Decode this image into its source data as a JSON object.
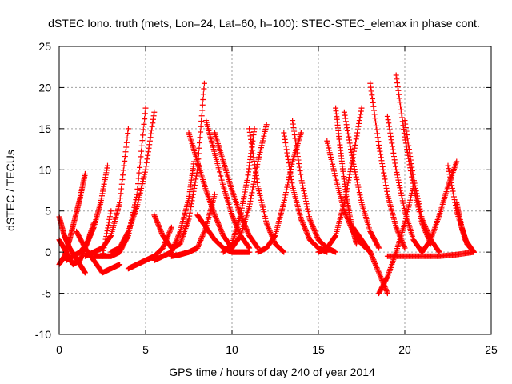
{
  "chart_data": {
    "type": "scatter",
    "title": "dSTEC Iono. truth (mets, Lon=24, Lat=60, h=100): STEC-STEC_elemax in phase cont.",
    "xlabel": "GPS time / hours of day 240 of year 2014",
    "ylabel": "dSTEC  / TECUs",
    "xlim": [
      0,
      25
    ],
    "ylim": [
      -10,
      25
    ],
    "xticks": [
      0,
      5,
      10,
      15,
      20,
      25
    ],
    "yticks": [
      -10,
      -5,
      0,
      5,
      10,
      15,
      20,
      25
    ],
    "xtick_labels": [
      "0",
      "5",
      "10",
      "15",
      "20",
      "25"
    ],
    "ytick_labels": [
      "-10",
      "-5",
      "0",
      "5",
      "10",
      "15",
      "20",
      "25"
    ],
    "grid": true,
    "marker": "+",
    "color": "#ff0000",
    "series": [
      {
        "x": [
          0.0,
          0.3,
          0.6,
          0.9,
          1.2,
          1.5
        ],
        "y": [
          4.3,
          2.0,
          0.5,
          -0.5,
          -1.5,
          -2.5
        ]
      },
      {
        "x": [
          0.0,
          0.3,
          0.6,
          0.9,
          1.2,
          1.5
        ],
        "y": [
          -1.5,
          -0.5,
          1.5,
          4.0,
          6.5,
          9.5
        ]
      },
      {
        "x": [
          0.0,
          0.4,
          0.8,
          1.2,
          1.6,
          2.0
        ],
        "y": [
          1.5,
          0.0,
          -1.5,
          -1.0,
          1.0,
          3.5
        ]
      },
      {
        "x": [
          0.4,
          0.8,
          1.2,
          1.6,
          2.0,
          2.4,
          2.8
        ],
        "y": [
          -1.0,
          -0.5,
          0.0,
          1.0,
          3.0,
          6.0,
          10.5
        ]
      },
      {
        "x": [
          1.0,
          1.5,
          2.0,
          2.5,
          3.0,
          3.5
        ],
        "y": [
          2.5,
          0.5,
          -1.0,
          -2.5,
          -2.0,
          -1.5
        ]
      },
      {
        "x": [
          1.5,
          2.0,
          2.5,
          3.0,
          3.5,
          4.0
        ],
        "y": [
          -0.5,
          0.0,
          0.5,
          2.0,
          6.0,
          15.0
        ]
      },
      {
        "x": [
          2.5,
          3.0,
          3.5,
          4.0,
          4.5,
          5.0
        ],
        "y": [
          -0.5,
          -0.5,
          0.0,
          2.0,
          7.0,
          17.5
        ]
      },
      {
        "x": [
          2.0,
          2.5,
          3.0
        ],
        "y": [
          -0.5,
          -0.5,
          5.0
        ]
      },
      {
        "x": [
          3.0,
          3.5,
          4.0,
          4.5,
          5.0,
          5.5
        ],
        "y": [
          0.0,
          0.5,
          2.5,
          5.5,
          10.0,
          17.0
        ]
      },
      {
        "x": [
          4.0,
          4.5,
          5.0,
          5.5,
          6.0,
          6.5
        ],
        "y": [
          -2.0,
          -1.5,
          -1.0,
          -0.5,
          0.5,
          3.0
        ]
      },
      {
        "x": [
          5.5,
          6.0,
          6.5,
          7.0,
          7.5,
          8.0,
          8.4
        ],
        "y": [
          4.5,
          2.0,
          0.5,
          1.0,
          4.0,
          10.0,
          20.5
        ]
      },
      {
        "x": [
          5.5,
          6.0,
          6.5,
          7.0,
          7.5,
          7.8
        ],
        "y": [
          -1.0,
          -0.5,
          0.0,
          2.5,
          6.5,
          11.0
        ]
      },
      {
        "x": [
          6.5,
          7.0,
          7.5,
          8.0,
          8.5,
          9.0
        ],
        "y": [
          -0.5,
          -0.3,
          0.0,
          0.5,
          3.0,
          7.0
        ]
      },
      {
        "x": [
          7.5,
          8.0,
          8.5,
          9.0,
          9.5,
          10.0
        ],
        "y": [
          14.5,
          11.0,
          7.5,
          4.5,
          2.0,
          0.5
        ]
      },
      {
        "x": [
          8.5,
          9.0,
          9.5,
          10.0,
          10.5,
          11.0
        ],
        "y": [
          16.0,
          12.0,
          8.0,
          4.5,
          2.0,
          0.5
        ]
      },
      {
        "x": [
          8.0,
          8.5,
          9.0,
          9.5,
          10.0,
          10.5,
          11.0
        ],
        "y": [
          4.5,
          3.0,
          1.5,
          0.5,
          0.0,
          0.0,
          0.0
        ]
      },
      {
        "x": [
          9.0,
          9.5,
          10.0,
          10.5,
          11.0,
          11.5
        ],
        "y": [
          14.5,
          11.0,
          7.5,
          4.5,
          2.0,
          0.5
        ]
      },
      {
        "x": [
          9.5,
          10.0,
          10.5,
          10.9,
          11.3
        ],
        "y": [
          0.0,
          1.0,
          4.5,
          9.0,
          15.0
        ]
      },
      {
        "x": [
          10.0,
          10.5,
          11.0,
          11.5,
          12.0
        ],
        "y": [
          0.5,
          2.0,
          5.5,
          11.0,
          15.5
        ]
      },
      {
        "x": [
          11.0,
          11.5,
          12.0,
          12.5,
          13.0
        ],
        "y": [
          15.0,
          8.0,
          3.5,
          1.0,
          0.0
        ]
      },
      {
        "x": [
          11.5,
          12.0,
          12.5,
          13.0,
          13.5,
          14.0
        ],
        "y": [
          0.0,
          0.5,
          2.0,
          6.0,
          11.0,
          14.5
        ]
      },
      {
        "x": [
          13.0,
          13.5,
          14.0,
          14.5,
          15.0,
          15.5
        ],
        "y": [
          14.5,
          8.0,
          4.0,
          1.5,
          0.5,
          0.0
        ]
      },
      {
        "x": [
          13.5,
          14.0,
          14.5,
          15.0,
          15.5,
          16.0
        ],
        "y": [
          16.0,
          9.0,
          4.0,
          1.5,
          0.5,
          0.0
        ]
      },
      {
        "x": [
          15.0,
          15.5,
          16.0,
          16.5,
          17.0,
          17.5
        ],
        "y": [
          0.0,
          0.5,
          2.0,
          6.0,
          11.5,
          17.5
        ]
      },
      {
        "x": [
          15.5,
          16.0,
          16.5,
          17.0,
          17.5,
          18.0
        ],
        "y": [
          13.5,
          9.0,
          5.0,
          2.5,
          1.0,
          0.0
        ]
      },
      {
        "x": [
          16.0,
          16.3,
          16.6,
          16.9,
          17.2
        ],
        "y": [
          17.5,
          12.0,
          7.0,
          3.5,
          1.0
        ]
      },
      {
        "x": [
          16.5,
          17.0,
          17.5,
          18.0,
          18.5
        ],
        "y": [
          17.0,
          11.0,
          6.0,
          2.5,
          0.5
        ]
      },
      {
        "x": [
          17.0,
          17.5,
          18.0,
          18.5,
          19.0
        ],
        "y": [
          3.0,
          1.5,
          0.0,
          -2.5,
          -5.0
        ]
      },
      {
        "x": [
          18.0,
          18.5,
          19.0,
          19.5,
          20.0
        ],
        "y": [
          20.5,
          13.0,
          7.0,
          3.0,
          0.5
        ]
      },
      {
        "x": [
          18.5,
          19.0,
          19.5,
          20.0,
          20.5
        ],
        "y": [
          -5.0,
          -3.0,
          0.0,
          3.5,
          8.0
        ]
      },
      {
        "x": [
          19.0,
          19.5,
          20.0,
          20.5,
          21.0
        ],
        "y": [
          16.5,
          10.0,
          5.0,
          1.5,
          0.0
        ]
      },
      {
        "x": [
          19.5,
          20.0,
          20.5,
          21.0,
          21.5
        ],
        "y": [
          21.5,
          14.0,
          8.0,
          3.5,
          1.0
        ]
      },
      {
        "x": [
          20.0,
          20.5,
          21.0,
          21.5,
          22.0
        ],
        "y": [
          16.0,
          9.0,
          4.0,
          1.5,
          0.0
        ]
      },
      {
        "x": [
          21.0,
          21.5,
          22.0,
          22.5,
          23.0
        ],
        "y": [
          0.0,
          1.5,
          4.5,
          8.0,
          11.0
        ]
      },
      {
        "x": [
          22.5,
          23.0,
          23.5,
          24.0
        ],
        "y": [
          10.5,
          5.0,
          1.5,
          0.0
        ]
      },
      {
        "x": [
          23.0,
          23.3,
          23.6,
          24.0
        ],
        "y": [
          6.0,
          3.0,
          1.0,
          0.0
        ]
      },
      {
        "x": [
          19.0,
          20.0,
          21.0,
          22.0,
          23.0,
          24.0
        ],
        "y": [
          -0.5,
          -0.5,
          -0.5,
          -0.5,
          -0.3,
          0.0
        ]
      }
    ]
  }
}
